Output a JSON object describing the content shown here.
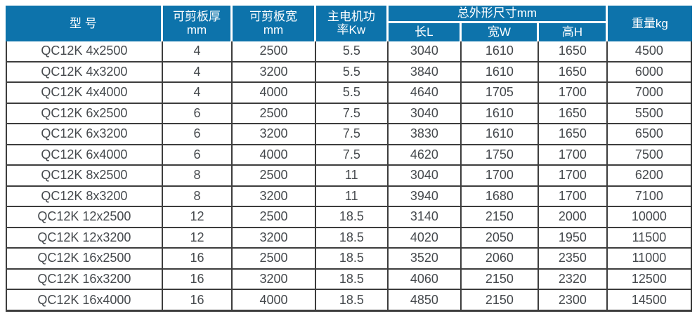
{
  "colors": {
    "header_bg": "#0d73ab",
    "header_text": "#ffffff",
    "body_text": "#45494d",
    "grid_line": "#3d3d3d"
  },
  "table": {
    "header": {
      "model": "型 号",
      "thickness": "可剪板厚\nmm",
      "plate_width": "可剪板宽\nmm",
      "motor_power": "主电机功\n率Kw",
      "overall_dims": "总外形尺寸mm",
      "dim_length": "长L",
      "dim_width": "宽W",
      "dim_height": "高H",
      "weight": "重量kg"
    },
    "rows": [
      [
        "QC12K 4x2500",
        "4",
        "2500",
        "5.5",
        "3040",
        "1610",
        "1650",
        "4500"
      ],
      [
        "QC12K 4x3200",
        "4",
        "3200",
        "5.5",
        "3840",
        "1610",
        "1650",
        "6000"
      ],
      [
        "QC12K 4x4000",
        "4",
        "4000",
        "5.5",
        "4640",
        "1705",
        "1700",
        "7000"
      ],
      [
        "QC12K 6x2500",
        "6",
        "2500",
        "7.5",
        "3040",
        "1610",
        "1650",
        "5500"
      ],
      [
        "QC12K 6x3200",
        "6",
        "3200",
        "7.5",
        "3830",
        "1610",
        "1650",
        "6500"
      ],
      [
        "QC12K 6x4000",
        "6",
        "4000",
        "7.5",
        "4620",
        "1750",
        "1700",
        "7500"
      ],
      [
        "QC12K 8x2500",
        "8",
        "2500",
        "11",
        "3040",
        "1700",
        "1700",
        "6200"
      ],
      [
        "QC12K 8x3200",
        "8",
        "3200",
        "11",
        "3940",
        "1680",
        "1700",
        "7100"
      ],
      [
        "QC12K 12x2500",
        "12",
        "2500",
        "18.5",
        "3140",
        "2150",
        "2000",
        "10000"
      ],
      [
        "QC12K 12x3200",
        "12",
        "3200",
        "18.5",
        "4020",
        "2050",
        "1950",
        "11500"
      ],
      [
        "QC12K 16x2500",
        "16",
        "2500",
        "18.5",
        "3520",
        "2060",
        "2350",
        "11000"
      ],
      [
        "QC12K 16x3200",
        "16",
        "3200",
        "18.5",
        "4060",
        "2150",
        "2320",
        "12500"
      ],
      [
        "QC12K 16x4000",
        "16",
        "4000",
        "18.5",
        "4850",
        "2150",
        "2300",
        "14500"
      ]
    ]
  }
}
